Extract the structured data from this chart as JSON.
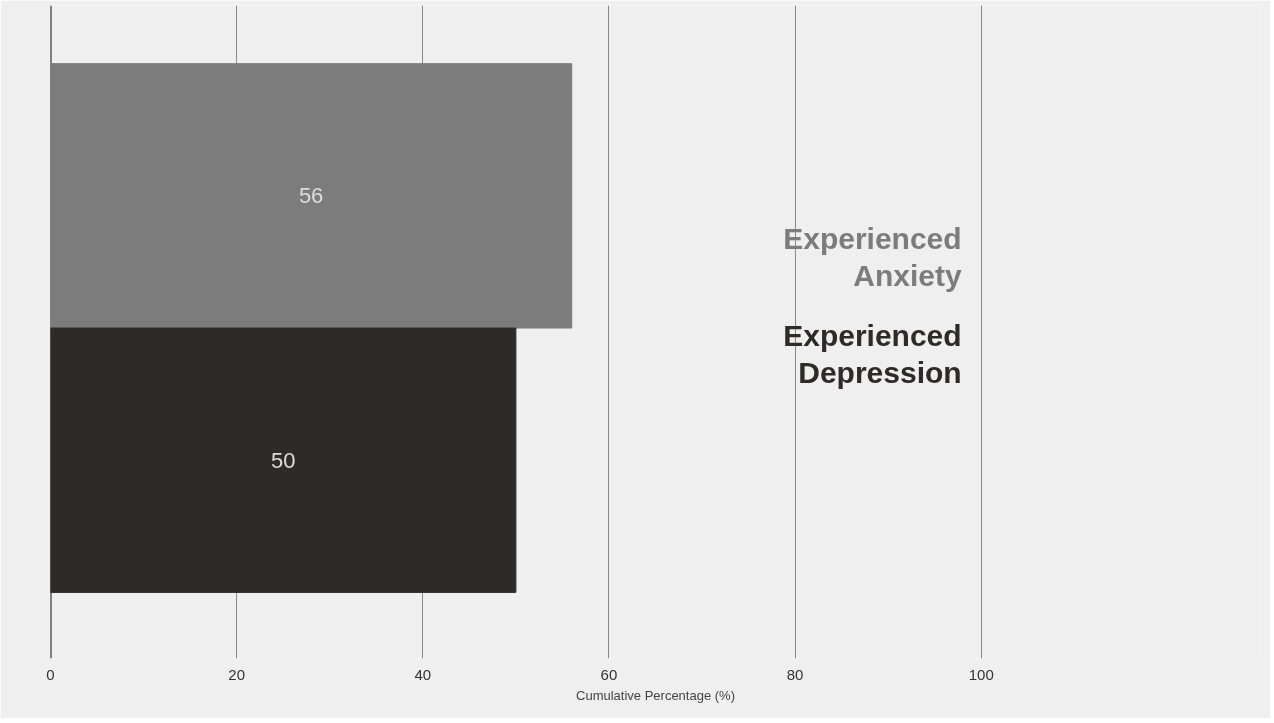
{
  "chart_data": {
    "type": "bar",
    "orientation": "horizontal",
    "xlabel": "Cumulative Percentage (%)",
    "categories": [
      null,
      null
    ],
    "series": [
      {
        "name": "Experienced Anxiety",
        "color": "#7c7c7c",
        "values": [
          56,
          null
        ]
      },
      {
        "name": "Experienced Depression",
        "color": "#2e2a2a",
        "values": [
          null,
          50
        ]
      }
    ],
    "xlim": [
      0,
      130
    ],
    "xticks": [
      0,
      20,
      40,
      60,
      80,
      100
    ],
    "grid": "x",
    "legend": "right",
    "data_labels": true
  }
}
